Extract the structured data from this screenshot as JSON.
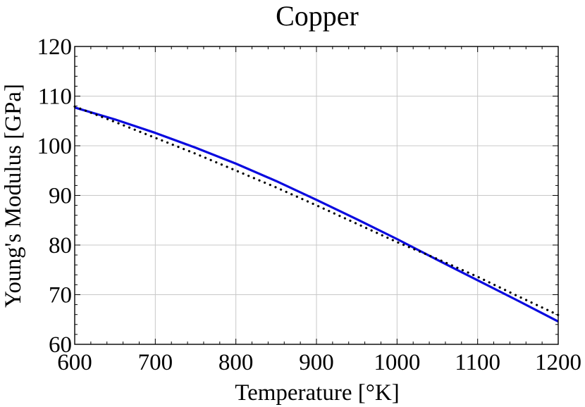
{
  "chart_data": {
    "type": "line",
    "title": "Copper",
    "xlabel": "Temperature [°K]",
    "ylabel": "Young's Modulus [GPa]",
    "xlim": [
      600,
      1200
    ],
    "ylim": [
      60,
      120
    ],
    "xticks": [
      600,
      700,
      800,
      900,
      1000,
      1100,
      1200
    ],
    "yticks": [
      60,
      70,
      80,
      90,
      100,
      110,
      120
    ],
    "grid": true,
    "series": [
      {
        "style": "solid",
        "color": "#0a0adf",
        "x": [
          600,
          650,
          700,
          750,
          800,
          850,
          900,
          950,
          1000,
          1050,
          1100,
          1150,
          1200
        ],
        "y": [
          107.7,
          105.3,
          102.6,
          99.6,
          96.4,
          92.9,
          89.1,
          85.2,
          81.2,
          77.0,
          72.9,
          68.8,
          64.6
        ]
      },
      {
        "style": "dotted",
        "color": "#000000",
        "x": [
          600,
          650,
          700,
          750,
          800,
          850,
          900,
          950,
          1000,
          1050,
          1100,
          1150,
          1200
        ],
        "y": [
          107.9,
          104.8,
          101.6,
          98.4,
          95.0,
          91.6,
          88.0,
          84.3,
          80.6,
          77.2,
          73.6,
          69.7,
          65.9
        ]
      }
    ]
  }
}
